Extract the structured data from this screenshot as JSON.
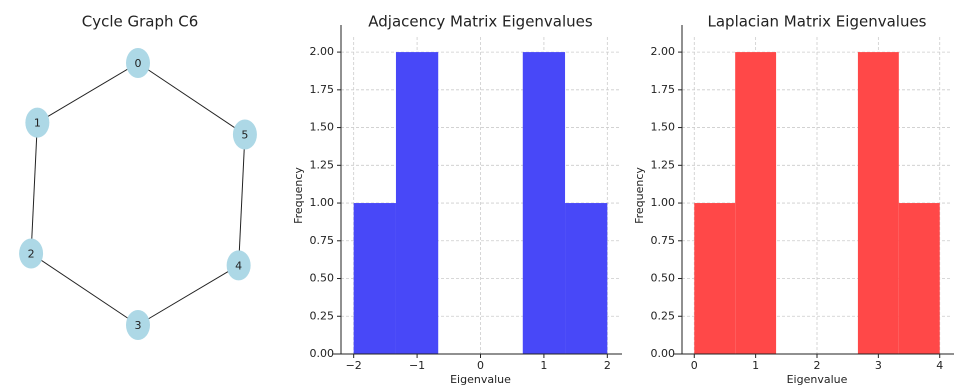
{
  "chart_data": [
    {
      "type": "graph",
      "title": "Cycle Graph C6",
      "nodes": [
        "0",
        "1",
        "2",
        "3",
        "4",
        "5"
      ],
      "edges": [
        [
          0,
          1
        ],
        [
          1,
          2
        ],
        [
          2,
          3
        ],
        [
          3,
          4
        ],
        [
          4,
          5
        ],
        [
          5,
          0
        ]
      ],
      "node_color": "#add8e6",
      "edge_color": "#222222"
    },
    {
      "type": "histogram",
      "title": "Adjacency Matrix Eigenvalues",
      "x_label": "Eigenvalue",
      "y_label": "Frequency",
      "bins": [
        -2,
        -1.3333,
        -0.6667,
        0,
        0.6667,
        1.3333,
        2
      ],
      "counts": [
        1,
        2,
        0,
        0,
        2,
        1
      ],
      "color": "#4848f8",
      "xlim": [
        -2.2,
        2.2
      ],
      "xticks": [
        {
          "value": -2,
          "label": "−2"
        },
        {
          "value": -1,
          "label": "−1"
        },
        0,
        1,
        2
      ],
      "ylim": [
        0,
        2.1
      ],
      "yticks": [
        {
          "value": 0,
          "label": "0.00"
        },
        {
          "value": 0.25,
          "label": "0.25"
        },
        {
          "value": 0.5,
          "label": "0.50"
        },
        {
          "value": 0.75,
          "label": "0.75"
        },
        {
          "value": 1,
          "label": "1.00"
        },
        {
          "value": 1.25,
          "label": "1.25"
        },
        {
          "value": 1.5,
          "label": "1.50"
        },
        {
          "value": 1.75,
          "label": "1.75"
        },
        {
          "value": 2,
          "label": "2.00"
        }
      ],
      "grid": true
    },
    {
      "type": "histogram",
      "title": "Laplacian Matrix Eigenvalues",
      "x_label": "Eigenvalue",
      "y_label": "Frequency",
      "bins": [
        0,
        0.6667,
        1.3333,
        2,
        2.6667,
        3.3333,
        4
      ],
      "counts": [
        1,
        2,
        0,
        0,
        2,
        1
      ],
      "color": "#ff4848",
      "xlim": [
        -0.2,
        4.2
      ],
      "xticks": [
        0,
        1,
        2,
        3,
        4
      ],
      "ylim": [
        0,
        2.1
      ],
      "yticks": [
        {
          "value": 0,
          "label": "0.00"
        },
        {
          "value": 0.25,
          "label": "0.25"
        },
        {
          "value": 0.5,
          "label": "0.50"
        },
        {
          "value": 0.75,
          "label": "0.75"
        },
        {
          "value": 1,
          "label": "1.00"
        },
        {
          "value": 1.25,
          "label": "1.25"
        },
        {
          "value": 1.5,
          "label": "1.50"
        },
        {
          "value": 1.75,
          "label": "1.75"
        },
        {
          "value": 2,
          "label": "2.00"
        }
      ],
      "grid": true
    }
  ]
}
